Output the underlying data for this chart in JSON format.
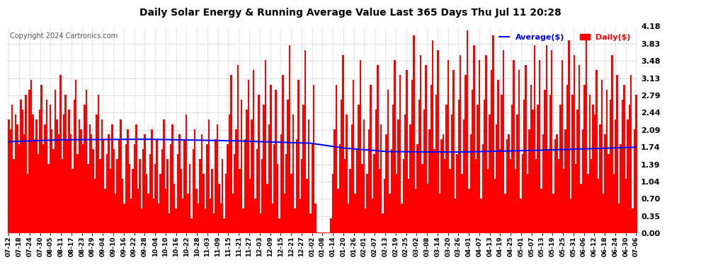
{
  "title": "Daily Solar Energy & Running Average Value Last 365 Days Thu Jul 11 20:28",
  "copyright": "Copyright 2024 Cartronics.com",
  "legend_avg": "Average($)",
  "legend_daily": "Daily($)",
  "y_ticks": [
    0.0,
    0.35,
    0.7,
    1.04,
    1.39,
    1.74,
    2.09,
    2.44,
    2.79,
    3.13,
    3.48,
    3.83,
    4.18
  ],
  "ylim": [
    0.0,
    4.18
  ],
  "bar_color": "#ff0000",
  "avg_color": "#0000ff",
  "background_color": "#ffffff",
  "grid_color": "#b0b0b0",
  "title_color": "#000000",
  "copyright_color": "#555555",
  "x_labels": [
    "07-12",
    "07-18",
    "07-24",
    "07-30",
    "08-05",
    "08-11",
    "08-17",
    "08-23",
    "08-29",
    "09-04",
    "09-10",
    "09-16",
    "09-22",
    "09-28",
    "10-04",
    "10-10",
    "10-16",
    "10-22",
    "10-28",
    "11-03",
    "11-09",
    "11-15",
    "11-21",
    "11-27",
    "12-03",
    "12-09",
    "12-15",
    "12-21",
    "12-27",
    "01-02",
    "01-08",
    "01-14",
    "01-20",
    "01-26",
    "02-01",
    "02-07",
    "02-13",
    "02-19",
    "02-25",
    "03-02",
    "03-08",
    "03-14",
    "03-20",
    "03-26",
    "04-01",
    "04-07",
    "04-13",
    "04-19",
    "04-25",
    "05-01",
    "05-07",
    "05-13",
    "05-19",
    "05-25",
    "05-31",
    "06-06",
    "06-12",
    "06-18",
    "06-24",
    "06-30",
    "07-06"
  ],
  "n_days": 365,
  "avg_keypoints_x": [
    0,
    30,
    80,
    130,
    175,
    195,
    220,
    260,
    300,
    340,
    364
  ],
  "avg_keypoints_y": [
    1.85,
    1.89,
    1.9,
    1.87,
    1.82,
    1.72,
    1.65,
    1.64,
    1.67,
    1.71,
    1.74
  ],
  "daily_seed": 42,
  "daily_values": [
    2.3,
    2.1,
    2.6,
    1.5,
    2.4,
    2.2,
    1.8,
    2.7,
    2.5,
    2.0,
    2.8,
    1.2,
    2.9,
    3.1,
    2.4,
    1.9,
    2.3,
    1.6,
    2.5,
    3.0,
    1.8,
    2.2,
    2.7,
    1.4,
    2.6,
    2.1,
    1.7,
    2.9,
    2.3,
    2.0,
    3.2,
    1.5,
    2.4,
    2.8,
    1.9,
    2.5,
    2.0,
    1.3,
    2.7,
    3.1,
    1.6,
    2.3,
    2.1,
    1.8,
    2.6,
    2.9,
    1.4,
    2.2,
    2.0,
    1.7,
    1.1,
    2.4,
    2.8,
    1.5,
    2.3,
    1.9,
    0.9,
    1.6,
    2.0,
    1.3,
    2.2,
    1.7,
    0.8,
    1.5,
    1.9,
    2.3,
    1.1,
    0.6,
    1.8,
    2.1,
    1.4,
    0.7,
    1.3,
    1.8,
    2.2,
    0.9,
    1.5,
    0.5,
    1.7,
    2.0,
    1.2,
    0.8,
    1.6,
    2.1,
    0.7,
    1.4,
    1.9,
    0.6,
    1.2,
    1.7,
    2.3,
    0.9,
    1.5,
    0.4,
    1.8,
    2.2,
    1.0,
    0.5,
    1.6,
    2.0,
    1.3,
    0.7,
    1.9,
    2.4,
    0.8,
    1.4,
    0.3,
    1.7,
    2.1,
    0.9,
    0.6,
    1.5,
    2.0,
    1.2,
    0.5,
    1.8,
    2.3,
    0.7,
    1.3,
    0.4,
    1.9,
    2.2,
    1.0,
    0.6,
    1.5,
    0.3,
    1.2,
    1.8,
    2.4,
    3.2,
    0.8,
    1.6,
    2.1,
    3.4,
    1.3,
    2.7,
    0.5,
    1.9,
    2.5,
    3.1,
    1.1,
    2.3,
    3.3,
    0.7,
    1.7,
    2.8,
    0.4,
    1.5,
    2.6,
    3.5,
    1.0,
    2.2,
    3.0,
    0.6,
    1.8,
    2.9,
    1.4,
    0.3,
    2.0,
    3.2,
    0.8,
    1.6,
    2.7,
    3.8,
    1.2,
    2.4,
    0.5,
    1.9,
    3.1,
    0.7,
    1.5,
    2.6,
    3.7,
    1.1,
    2.3,
    0.4,
    1.8,
    3.0,
    0.6,
    0.02,
    0.02,
    0.02,
    0.02,
    0.02,
    0.02,
    0.02,
    0.02,
    0.3,
    1.2,
    2.1,
    3.0,
    0.9,
    1.8,
    2.7,
    3.6,
    1.5,
    2.4,
    0.6,
    1.3,
    2.2,
    3.1,
    0.8,
    1.7,
    2.6,
    3.5,
    1.4,
    2.3,
    0.5,
    1.2,
    2.1,
    3.0,
    0.7,
    1.6,
    2.5,
    3.4,
    1.3,
    2.2,
    0.4,
    1.1,
    2.0,
    2.9,
    0.8,
    1.7,
    2.6,
    3.5,
    1.2,
    2.3,
    3.2,
    0.6,
    1.5,
    2.4,
    3.3,
    1.1,
    2.2,
    3.1,
    4.0,
    0.9,
    1.8,
    2.7,
    3.6,
    1.4,
    2.5,
    3.4,
    1.0,
    2.1,
    3.0,
    3.9,
    1.7,
    2.8,
    3.7,
    0.8,
    1.9,
    2.0,
    1.5,
    2.6,
    3.5,
    1.3,
    2.4,
    3.3,
    0.7,
    1.6,
    2.7,
    3.6,
    1.2,
    2.3,
    3.2,
    4.1,
    0.9,
    2.0,
    2.9,
    3.8,
    1.5,
    2.6,
    3.5,
    0.7,
    1.8,
    2.7,
    3.6,
    1.3,
    2.4,
    3.3,
    4.0,
    1.1,
    2.2,
    3.1,
    1.7,
    2.8,
    3.7,
    0.8,
    1.9,
    2.0,
    1.5,
    2.6,
    3.5,
    1.3,
    2.4,
    3.3,
    0.7,
    1.6,
    2.7,
    3.4,
    1.2,
    2.1,
    3.0,
    2.5,
    3.8,
    1.5,
    2.6,
    3.5,
    0.9,
    2.0,
    2.9,
    3.8,
    1.7,
    2.8,
    3.7,
    0.8,
    1.9,
    2.0,
    1.5,
    2.6,
    3.5,
    1.3,
    2.1,
    3.0,
    3.9,
    0.7,
    2.8,
    3.6,
    1.4,
    2.5,
    3.4,
    1.0,
    2.1,
    3.0,
    3.9,
    1.2,
    2.8,
    1.5,
    2.6,
    2.4,
    3.3,
    1.1,
    2.2,
    3.1,
    0.8,
    2.0,
    2.9,
    1.6,
    2.7,
    3.6,
    1.2,
    2.3,
    3.2,
    0.6,
    1.8,
    2.7,
    3.0,
    1.1,
    2.3,
    2.6,
    3.2,
    0.5,
    2.1,
    2.8
  ]
}
